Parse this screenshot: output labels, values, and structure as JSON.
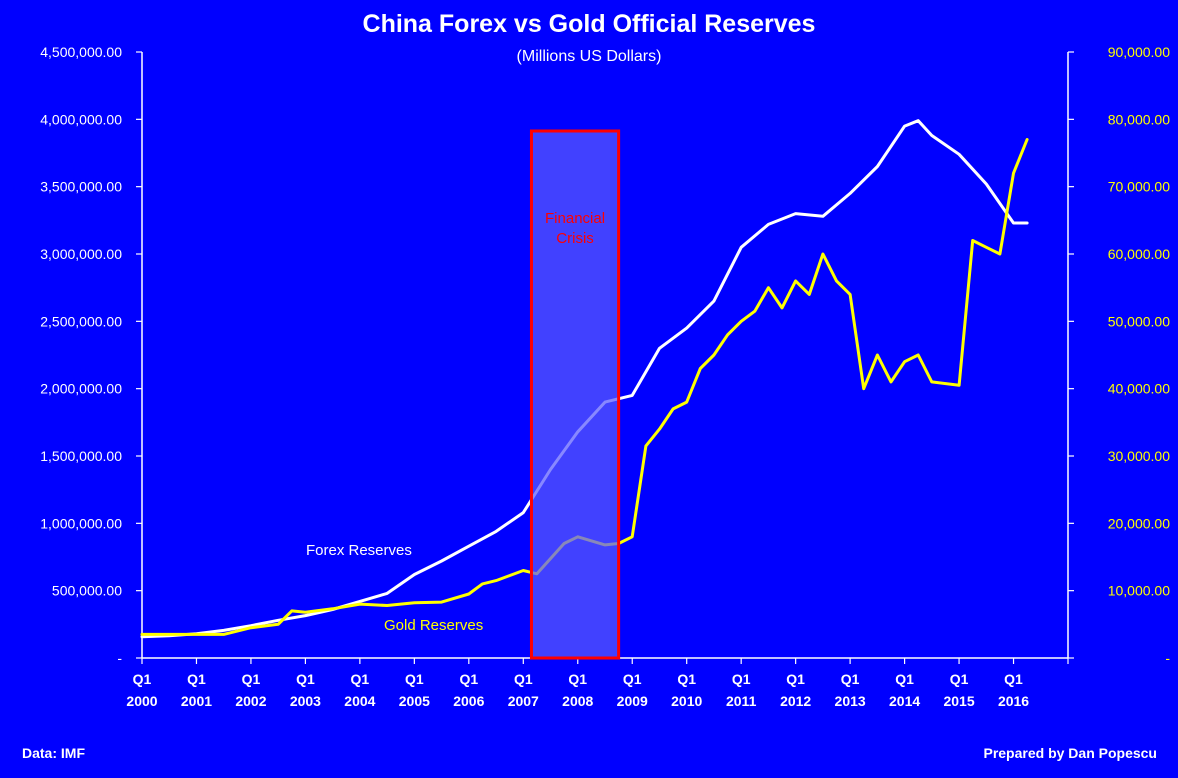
{
  "colors": {
    "background": "#0000FF",
    "forex_line": "#FFFFFF",
    "gold_line": "#FFFF00",
    "crisis_fill": "#5A5AFF",
    "crisis_border": "#FF0000"
  },
  "footer": {
    "source": "Data: IMF",
    "credit": "Prepared by Dan Popescu"
  },
  "chart_data": {
    "type": "line",
    "title": "China Forex vs Gold Official Reserves",
    "subtitle": "(Millions US Dollars)",
    "x_tick_labels": [
      {
        "q": "Q1",
        "year": "2000"
      },
      {
        "q": "Q1",
        "year": "2001"
      },
      {
        "q": "Q1",
        "year": "2002"
      },
      {
        "q": "Q1",
        "year": "2003"
      },
      {
        "q": "Q1",
        "year": "2004"
      },
      {
        "q": "Q1",
        "year": "2005"
      },
      {
        "q": "Q1",
        "year": "2006"
      },
      {
        "q": "Q1",
        "year": "2007"
      },
      {
        "q": "Q1",
        "year": "2008"
      },
      {
        "q": "Q1",
        "year": "2009"
      },
      {
        "q": "Q1",
        "year": "2010"
      },
      {
        "q": "Q1",
        "year": "2011"
      },
      {
        "q": "Q1",
        "year": "2012"
      },
      {
        "q": "Q1",
        "year": "2013"
      },
      {
        "q": "Q1",
        "year": "2014"
      },
      {
        "q": "Q1",
        "year": "2015"
      },
      {
        "q": "Q1",
        "year": "2016"
      }
    ],
    "y_left": {
      "min": 0,
      "max": 4500000,
      "tick_labels": [
        "-",
        "500,000.00",
        "1,000,000.00",
        "1,500,000.00",
        "2,000,000.00",
        "2,500,000.00",
        "3,000,000.00",
        "3,500,000.00",
        "4,000,000.00",
        "4,500,000.00"
      ]
    },
    "y_right": {
      "min": 0,
      "max": 90000,
      "tick_labels": [
        "-",
        "10,000.00",
        "20,000.00",
        "30,000.00",
        "40,000.00",
        "50,000.00",
        "60,000.00",
        "70,000.00",
        "80,000.00",
        "90,000.00"
      ]
    },
    "grid": false,
    "annotation": {
      "label": "Financial Crisis",
      "x_start": 2007.15,
      "x_end": 2008.75
    },
    "series": [
      {
        "name": "Forex Reserves",
        "axis": "left",
        "x": [
          2000.0,
          2000.5,
          2001.0,
          2001.5,
          2002.0,
          2002.5,
          2003.0,
          2003.5,
          2004.0,
          2004.5,
          2005.0,
          2005.5,
          2006.0,
          2006.5,
          2007.0,
          2007.5,
          2008.0,
          2008.5,
          2009.0,
          2009.5,
          2010.0,
          2010.5,
          2011.0,
          2011.5,
          2012.0,
          2012.5,
          2013.0,
          2013.5,
          2014.0,
          2014.25,
          2014.5,
          2015.0,
          2015.5,
          2016.0,
          2016.25
        ],
        "values": [
          158000,
          165000,
          180000,
          205000,
          240000,
          280000,
          315000,
          360000,
          420000,
          480000,
          620000,
          720000,
          830000,
          940000,
          1080000,
          1400000,
          1680000,
          1900000,
          1950000,
          2300000,
          2450000,
          2650000,
          3050000,
          3220000,
          3300000,
          3280000,
          3450000,
          3650000,
          3950000,
          3990000,
          3880000,
          3740000,
          3520000,
          3230000,
          3230000
        ]
      },
      {
        "name": "Gold Reserves",
        "axis": "right",
        "x": [
          2000.0,
          2000.5,
          2001.0,
          2001.5,
          2002.0,
          2002.5,
          2002.75,
          2003.0,
          2003.5,
          2004.0,
          2004.5,
          2005.0,
          2005.5,
          2006.0,
          2006.25,
          2006.5,
          2007.0,
          2007.25,
          2007.75,
          2008.0,
          2008.5,
          2008.75,
          2009.0,
          2009.25,
          2009.5,
          2009.75,
          2010.0,
          2010.25,
          2010.5,
          2010.75,
          2011.0,
          2011.25,
          2011.5,
          2011.75,
          2012.0,
          2012.25,
          2012.5,
          2012.75,
          2013.0,
          2013.25,
          2013.5,
          2013.75,
          2014.0,
          2014.25,
          2014.5,
          2015.0,
          2015.25,
          2015.5,
          2015.75,
          2016.0,
          2016.25
        ],
        "values": [
          3500,
          3500,
          3500,
          3500,
          4500,
          5000,
          7000,
          6800,
          7300,
          8000,
          7800,
          8200,
          8300,
          9500,
          11000,
          11500,
          13000,
          12500,
          17000,
          18000,
          16800,
          17000,
          18000,
          31500,
          34000,
          37000,
          38000,
          43000,
          45000,
          48000,
          50000,
          51500,
          55000,
          52000,
          56000,
          54000,
          60000,
          56000,
          54000,
          40000,
          45000,
          41000,
          44000,
          45000,
          41000,
          40500,
          62000,
          61000,
          60000,
          72000,
          77000
        ]
      }
    ]
  }
}
